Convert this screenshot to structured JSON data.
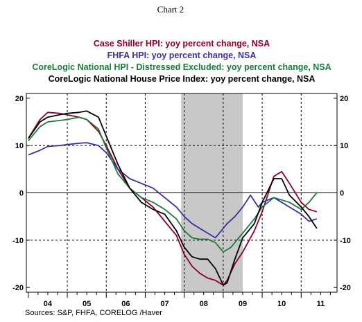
{
  "chart_data": {
    "type": "line",
    "title": "Chart 2",
    "source": "Sources:  S&P, FHFA, CORELOG /Haver",
    "x_tick_labels": [
      "04",
      "05",
      "06",
      "07",
      "08",
      "09",
      "10",
      "11"
    ],
    "x_tick_dates": [
      2004.5,
      2005.5,
      2006.5,
      2007.5,
      2008.5,
      2009.5,
      2010.5,
      2011.5
    ],
    "xlim": [
      2003.95,
      2011.92
    ],
    "ylim": [
      -21,
      21
    ],
    "y_ticks_left": [
      "20",
      "10",
      "0",
      "-10",
      "-20"
    ],
    "y_ticks_right": [
      "20",
      "10",
      "0",
      "-10",
      "-20"
    ],
    "y_tick_values": [
      20,
      10,
      0,
      -10,
      -20
    ],
    "grid": "dashed vertical at year boundaries, dashed horizontal at 10, -10; solid zero line",
    "recession_shading": [
      2007.92,
      2009.5
    ],
    "series": [
      {
        "name": "Case Shiller HPI: yoy percent change, NSA",
        "color": "#8b0025",
        "x": [
          2004.0,
          2004.3,
          2004.5,
          2004.8,
          2005.0,
          2005.3,
          2005.5,
          2005.8,
          2006.0,
          2006.3,
          2006.6,
          2006.9,
          2007.2,
          2007.5,
          2007.8,
          2008.0,
          2008.2,
          2008.4,
          2008.6,
          2008.8,
          2009.0,
          2009.1,
          2009.3,
          2009.5,
          2009.8,
          2010.0,
          2010.3,
          2010.5,
          2010.7,
          2011.0,
          2011.2,
          2011.4
        ],
        "y": [
          11.5,
          15.5,
          17.0,
          16.8,
          16.5,
          16.0,
          15.5,
          13.0,
          10.0,
          5.0,
          1.0,
          -1.0,
          -3.0,
          -6.0,
          -9.0,
          -13.0,
          -15.5,
          -17.0,
          -18.0,
          -18.5,
          -19.5,
          -18.5,
          -15.0,
          -12.5,
          -8.0,
          -4.0,
          3.5,
          4.5,
          2.0,
          -2.0,
          -3.5,
          -4.0
        ]
      },
      {
        "name": "FHFA HPI: yoy percent change, NSA",
        "color": "#3a2fa0",
        "x": [
          2004.0,
          2004.3,
          2004.5,
          2004.8,
          2005.0,
          2005.3,
          2005.5,
          2005.8,
          2006.0,
          2006.3,
          2006.6,
          2006.9,
          2007.2,
          2007.5,
          2007.8,
          2008.0,
          2008.2,
          2008.4,
          2008.6,
          2008.8,
          2009.0,
          2009.1,
          2009.3,
          2009.5,
          2009.7,
          2009.9,
          2010.0,
          2010.3,
          2010.5,
          2010.7,
          2011.0,
          2011.2,
          2011.4
        ],
        "y": [
          8.0,
          9.0,
          9.8,
          10.0,
          10.2,
          10.5,
          10.6,
          10.0,
          8.5,
          5.0,
          3.0,
          2.0,
          1.0,
          -1.0,
          -3.0,
          -5.0,
          -6.5,
          -7.5,
          -8.5,
          -9.5,
          -7.5,
          -6.5,
          -5.0,
          -3.0,
          -0.5,
          -3.0,
          -2.0,
          -1.0,
          -2.0,
          -3.0,
          -4.5,
          -6.0,
          -5.5
        ]
      },
      {
        "name": "CoreLogic National HPI - Distressed Excluded: yoy percent change, NSA",
        "color": "#1a7a3a",
        "x": [
          2004.0,
          2004.3,
          2004.5,
          2004.8,
          2005.0,
          2005.3,
          2005.5,
          2005.8,
          2006.0,
          2006.3,
          2006.6,
          2006.9,
          2007.2,
          2007.5,
          2007.8,
          2008.0,
          2008.2,
          2008.4,
          2008.6,
          2008.8,
          2009.0,
          2009.2,
          2009.4,
          2009.6,
          2009.8,
          2010.0,
          2010.3,
          2010.5,
          2010.7,
          2011.0,
          2011.2,
          2011.4
        ],
        "y": [
          11.0,
          14.0,
          15.0,
          15.3,
          15.5,
          16.0,
          15.5,
          13.5,
          9.5,
          4.0,
          1.0,
          -1.0,
          -2.0,
          -3.5,
          -5.5,
          -8.0,
          -9.5,
          -9.8,
          -9.8,
          -10.5,
          -12.5,
          -11.5,
          -9.5,
          -7.5,
          -5.5,
          -3.0,
          -1.0,
          -1.5,
          -2.0,
          -3.5,
          -2.0,
          0.0
        ]
      },
      {
        "name": "CoreLogic National House Price Index: yoy percent change, NSA",
        "color": "#000000",
        "x": [
          2004.0,
          2004.3,
          2004.5,
          2004.8,
          2005.0,
          2005.3,
          2005.5,
          2005.8,
          2006.0,
          2006.3,
          2006.6,
          2006.9,
          2007.2,
          2007.5,
          2007.8,
          2008.0,
          2008.2,
          2008.4,
          2008.6,
          2008.8,
          2009.0,
          2009.1,
          2009.3,
          2009.5,
          2009.8,
          2010.0,
          2010.3,
          2010.5,
          2010.7,
          2011.0,
          2011.2,
          2011.4
        ],
        "y": [
          11.5,
          15.0,
          16.0,
          16.5,
          16.8,
          17.0,
          17.3,
          16.0,
          12.0,
          6.0,
          1.0,
          -2.0,
          -3.5,
          -4.5,
          -8.0,
          -11.5,
          -13.5,
          -14.0,
          -14.0,
          -16.0,
          -19.5,
          -19.0,
          -14.0,
          -9.5,
          -6.5,
          -2.0,
          3.0,
          3.0,
          -0.5,
          -3.0,
          -5.0,
          -7.5
        ]
      }
    ]
  }
}
